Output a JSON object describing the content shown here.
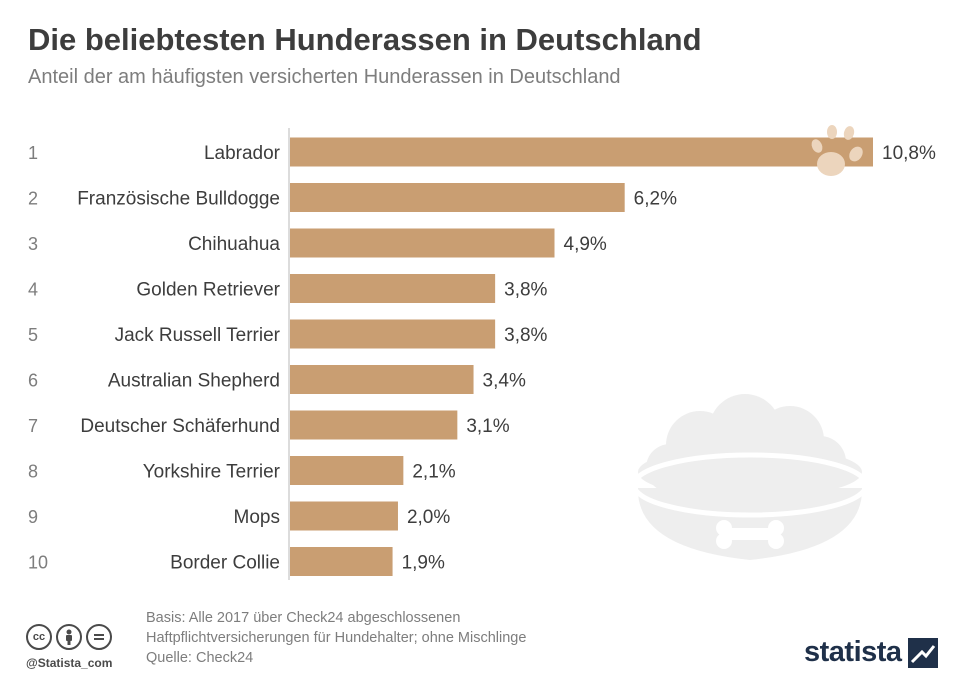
{
  "title": "Die beliebtesten Hunderassen in Deutschland",
  "subtitle": "Anteil der am häufigsten versicherten Hunderassen in Deutschland",
  "colors": {
    "bar": "#c99e72",
    "decoration": "#eeeeee",
    "paw": "#ecd5bd",
    "text": "#3d3d3d",
    "muted": "#7d7d7d",
    "brand": "#1f3049"
  },
  "chart_data": {
    "type": "bar",
    "orientation": "horizontal",
    "ranks": [
      "1",
      "2",
      "3",
      "4",
      "5",
      "6",
      "7",
      "8",
      "9",
      "10"
    ],
    "categories": [
      "Labrador",
      "Französische Bulldogge",
      "Chihuahua",
      "Golden Retriever",
      "Jack Russell Terrier",
      "Australian Shepherd",
      "Deutscher Schäferhund",
      "Yorkshire Terrier",
      "Mops",
      "Border Collie"
    ],
    "values": [
      10.8,
      6.2,
      4.9,
      3.8,
      3.8,
      3.4,
      3.1,
      2.1,
      2.0,
      1.9
    ],
    "value_labels": [
      "10,8%",
      "6,2%",
      "4,9%",
      "3,8%",
      "3,8%",
      "3,4%",
      "3,1%",
      "2,1%",
      "2,0%",
      "1,9%"
    ],
    "unit": "%",
    "xlim": [
      0,
      10.8
    ],
    "grid": false
  },
  "footer": {
    "basis_line1": "Basis: Alle 2017 über Check24 abgeschlossenen",
    "basis_line2": "Haftpflichtversicherungen für Hundehalter; ohne Mischlinge",
    "source": "Quelle: Check24",
    "handle": "@Statista_com",
    "cc_icons": [
      "cc-icon",
      "by-icon",
      "nd-icon"
    ]
  },
  "brand": {
    "name": "statista"
  }
}
